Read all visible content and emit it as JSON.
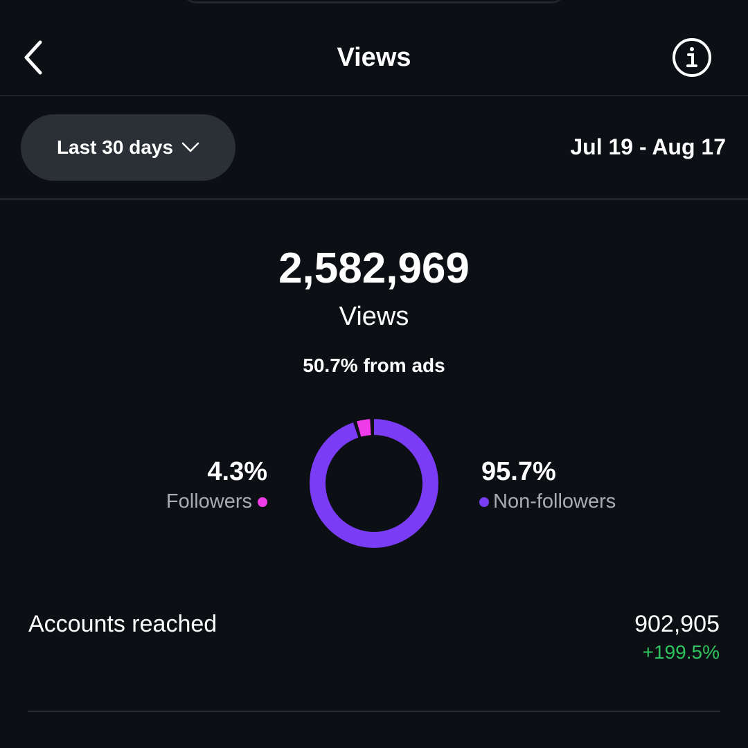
{
  "header": {
    "title": "Views",
    "back_icon": "chevron-left-icon",
    "info_icon": "info-icon"
  },
  "filter": {
    "range_label": "Last 30 days",
    "dates": "Jul 19 - Aug 17"
  },
  "summary": {
    "total": "2,582,969",
    "label": "Views",
    "ads": "50.7% from ads"
  },
  "breakdown": {
    "followers": {
      "pct": "4.3%",
      "label": "Followers",
      "value": 4.3,
      "color": "#f03ce8"
    },
    "non_followers": {
      "pct": "95.7%",
      "label": "Non-followers",
      "value": 95.7,
      "color": "#7b3cf6"
    }
  },
  "accounts": {
    "label": "Accounts reached",
    "value": "902,905",
    "change": "+199.5%",
    "change_color": "#2ec35e"
  }
}
